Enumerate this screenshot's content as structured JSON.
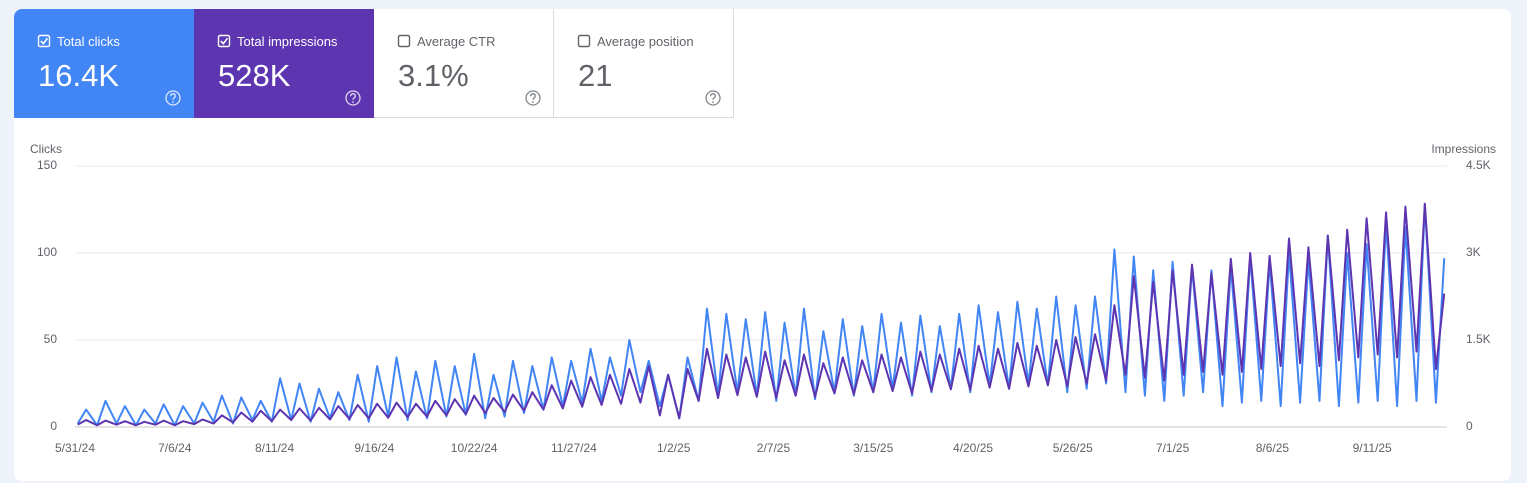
{
  "metrics": [
    {
      "label": "Total clicks",
      "value": "16.4K",
      "checked": true,
      "color": "#4285f4"
    },
    {
      "label": "Total impressions",
      "value": "528K",
      "checked": true,
      "color": "#5e35b1"
    },
    {
      "label": "Average CTR",
      "value": "3.1%",
      "checked": false,
      "color": "#ffffff"
    },
    {
      "label": "Average position",
      "value": "21",
      "checked": false,
      "color": "#ffffff"
    }
  ],
  "chart_data": {
    "type": "line",
    "y_label": "Clicks",
    "y2_label": "Impressions",
    "xlim": [
      "5/31/24",
      "10/8/25"
    ],
    "xticks": [
      "5/31/24",
      "7/6/24",
      "8/11/24",
      "9/16/24",
      "10/22/24",
      "11/27/24",
      "1/2/25",
      "2/7/25",
      "3/15/25",
      "4/20/25",
      "5/26/25",
      "7/1/25",
      "8/6/25",
      "9/11/25"
    ],
    "ylim": [
      0,
      150
    ],
    "yticks": [
      0,
      50,
      100,
      150
    ],
    "y2lim": [
      0,
      4500
    ],
    "y2ticks": [
      0,
      {
        "value": 1500,
        "label": "1.5K"
      },
      {
        "value": 3000,
        "label": "3K"
      },
      {
        "value": 4500,
        "label": "4.5K"
      }
    ],
    "grid": true,
    "x": [
      "6/1/24",
      "6/4/24",
      "6/8/24",
      "6/11/24",
      "6/15/24",
      "6/18/24",
      "6/22/24",
      "6/25/24",
      "6/29/24",
      "7/2/24",
      "7/6/24",
      "7/9/24",
      "7/13/24",
      "7/16/24",
      "7/20/24",
      "7/23/24",
      "7/27/24",
      "7/30/24",
      "8/3/24",
      "8/6/24",
      "8/10/24",
      "8/13/24",
      "8/17/24",
      "8/20/24",
      "8/24/24",
      "8/27/24",
      "8/31/24",
      "9/3/24",
      "9/7/24",
      "9/10/24",
      "9/14/24",
      "9/17/24",
      "9/21/24",
      "9/24/24",
      "9/28/24",
      "10/1/24",
      "10/5/24",
      "10/8/24",
      "10/12/24",
      "10/15/24",
      "10/19/24",
      "10/22/24",
      "10/26/24",
      "10/29/24",
      "11/2/24",
      "11/5/24",
      "11/9/24",
      "11/12/24",
      "11/16/24",
      "11/19/24",
      "11/23/24",
      "11/26/24",
      "11/30/24",
      "12/3/24",
      "12/7/24",
      "12/10/24",
      "12/14/24",
      "12/17/24",
      "12/21/24",
      "12/24/24",
      "12/28/24",
      "12/31/24",
      "1/4/25",
      "1/7/25",
      "1/11/25",
      "1/14/25",
      "1/18/25",
      "1/21/25",
      "1/25/25",
      "1/28/25",
      "2/1/25",
      "2/4/25",
      "2/8/25",
      "2/11/25",
      "2/15/25",
      "2/18/25",
      "2/22/25",
      "2/25/25",
      "3/1/25",
      "3/4/25",
      "3/8/25",
      "3/11/25",
      "3/15/25",
      "3/18/25",
      "3/22/25",
      "3/25/25",
      "3/29/25",
      "4/1/25",
      "4/5/25",
      "4/8/25",
      "4/12/25",
      "4/15/25",
      "4/19/25",
      "4/22/25",
      "4/26/25",
      "4/29/25",
      "5/3/25",
      "5/6/25",
      "5/10/25",
      "5/13/25",
      "5/17/25",
      "5/20/25",
      "5/24/25",
      "5/27/25",
      "5/31/25",
      "6/3/25",
      "6/7/25",
      "6/10/25",
      "6/14/25",
      "6/17/25",
      "6/21/25",
      "6/24/25",
      "6/28/25",
      "7/1/25",
      "7/5/25",
      "7/8/25",
      "7/12/25",
      "7/15/25",
      "7/19/25",
      "7/22/25",
      "7/26/25",
      "7/29/25",
      "8/2/25",
      "8/5/25",
      "8/9/25",
      "8/12/25",
      "8/16/25",
      "8/19/25",
      "8/23/25",
      "8/26/25",
      "8/30/25",
      "9/2/25",
      "9/6/25",
      "9/9/25",
      "9/13/25",
      "9/16/25",
      "9/20/25",
      "9/23/25",
      "9/27/25",
      "9/30/25",
      "10/4/25",
      "10/7/25"
    ],
    "series": [
      {
        "color": "#4285f4",
        "values": [
          2,
          10,
          1,
          15,
          2,
          12,
          1,
          10,
          2,
          13,
          1,
          12,
          2,
          14,
          3,
          18,
          2,
          17,
          4,
          15,
          3,
          28,
          4,
          25,
          3,
          22,
          5,
          20,
          4,
          30,
          3,
          35,
          6,
          40,
          4,
          32,
          5,
          38,
          6,
          35,
          7,
          42,
          5,
          30,
          6,
          38,
          8,
          35,
          10,
          40,
          12,
          38,
          14,
          45,
          15,
          40,
          18,
          50,
          20,
          38,
          12,
          30,
          5,
          40,
          15,
          68,
          18,
          65,
          20,
          62,
          18,
          66,
          15,
          60,
          18,
          68,
          16,
          55,
          20,
          62,
          18,
          58,
          20,
          65,
          22,
          60,
          18,
          64,
          20,
          58,
          22,
          65,
          20,
          70,
          24,
          66,
          22,
          72,
          25,
          68,
          24,
          75,
          20,
          70,
          22,
          75,
          25,
          102,
          20,
          98,
          18,
          90,
          15,
          95,
          18,
          92,
          20,
          90,
          12,
          92,
          14,
          98,
          15,
          95,
          12,
          100,
          14,
          96,
          15,
          110,
          12,
          100,
          14,
          105,
          15,
          118,
          12,
          115,
          15,
          128,
          14,
          97
        ]
      },
      {
        "color": "#5e35b1",
        "axis": "y2",
        "values": [
          40,
          120,
          30,
          110,
          40,
          100,
          30,
          90,
          40,
          110,
          30,
          100,
          50,
          130,
          60,
          200,
          80,
          250,
          90,
          280,
          100,
          300,
          120,
          320,
          110,
          330,
          130,
          360,
          140,
          380,
          150,
          400,
          160,
          420,
          170,
          400,
          180,
          450,
          200,
          480,
          220,
          540,
          240,
          500,
          260,
          560,
          280,
          600,
          300,
          720,
          320,
          800,
          350,
          860,
          380,
          900,
          400,
          1000,
          420,
          1050,
          200,
          900,
          150,
          1000,
          450,
          1350,
          500,
          1250,
          550,
          1200,
          520,
          1300,
          500,
          1150,
          540,
          1250,
          520,
          1100,
          580,
          1200,
          560,
          1150,
          600,
          1250,
          620,
          1200,
          580,
          1300,
          620,
          1250,
          650,
          1350,
          640,
          1400,
          680,
          1350,
          660,
          1450,
          700,
          1400,
          720,
          1500,
          700,
          1550,
          750,
          1600,
          800,
          2100,
          900,
          2600,
          850,
          2500,
          800,
          2700,
          900,
          2800,
          950,
          2650,
          900,
          2900,
          950,
          3000,
          1000,
          2950,
          1050,
          3250,
          1100,
          3100,
          1050,
          3300,
          1150,
          3400,
          1200,
          3600,
          1250,
          3700,
          1200,
          3800,
          1300,
          3850,
          1000,
          2300
        ]
      }
    ]
  }
}
